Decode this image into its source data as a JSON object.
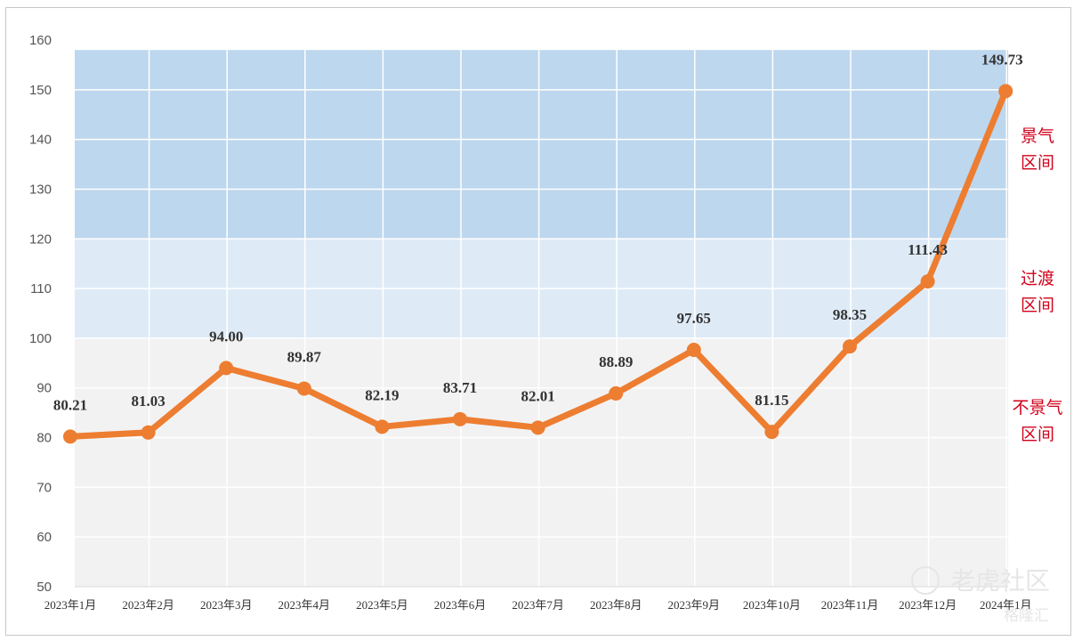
{
  "chart_data": {
    "type": "line",
    "title": "",
    "xlabel": "",
    "ylabel": "",
    "ylim": [
      50,
      160
    ],
    "yticks": [
      50,
      60,
      70,
      80,
      90,
      100,
      110,
      120,
      130,
      140,
      150,
      160
    ],
    "grid": true,
    "categories": [
      "2023年1月",
      "2023年2月",
      "2023年3月",
      "2023年4月",
      "2023年5月",
      "2023年6月",
      "2023年7月",
      "2023年8月",
      "2023年9月",
      "2023年10月",
      "2023年11月",
      "2023年12月",
      "2024年1月"
    ],
    "series": [
      {
        "values": [
          80.21,
          81.03,
          94.0,
          89.87,
          82.19,
          83.71,
          82.01,
          88.89,
          97.65,
          81.15,
          98.35,
          111.43,
          149.73
        ],
        "labels": [
          "80.21",
          "81.03",
          "94.00",
          "89.87",
          "82.19",
          "83.71",
          "82.01",
          "88.89",
          "97.65",
          "81.15",
          "98.35",
          "111.43",
          "149.73"
        ],
        "color": "#ed7d31"
      }
    ],
    "zones": [
      {
        "from": 120,
        "to": 158,
        "color": "#bdd7ee",
        "label_line1": "景气",
        "label_line2": "区间"
      },
      {
        "from": 100,
        "to": 120,
        "color": "#deebf7",
        "label_line1": "过渡",
        "label_line2": "区间"
      },
      {
        "from": 50,
        "to": 100,
        "color": "#f2f2f2",
        "label_line1": "不景气",
        "label_line2": "区间"
      }
    ],
    "zone_label_color": "#d0021b"
  },
  "watermark": {
    "text1": "老虎社区",
    "text2": "格隆汇"
  }
}
